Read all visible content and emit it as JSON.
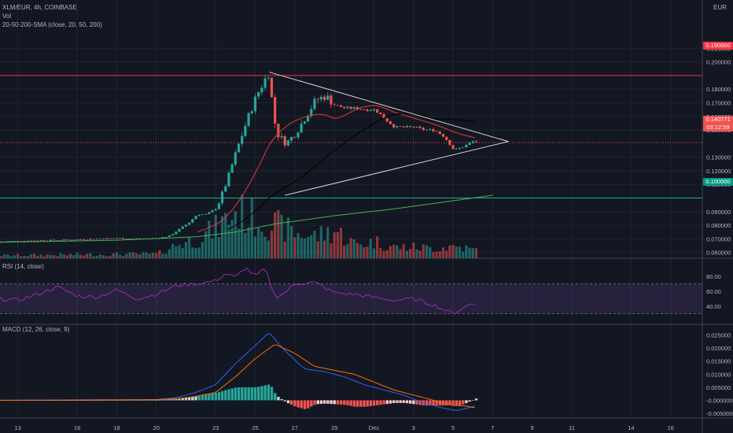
{
  "header": {
    "symbol": "XLM/EUR, 4h, COINBASE",
    "currency": "EUR",
    "vol_label": "Vol",
    "sma_label": "20-50-200-SMA (close, 20, 50, 200)"
  },
  "panes": {
    "rsi_label": "RSI (14, close)",
    "macd_label": "MACD (12, 26, close, 9)"
  },
  "price_tags": {
    "resistance": "0.190000",
    "last": "0.140771",
    "countdown": "03:12:59",
    "support": "0.100000"
  },
  "colors": {
    "bg": "#131722",
    "up": "#26a69a",
    "down": "#ef5350",
    "sma20": "#e53935",
    "sma50": "#000000",
    "sma200": "#4caf50",
    "resistance": "#f23645",
    "support": "#22ab94",
    "rsi": "#9c27b0",
    "macd": "#2962ff",
    "signal": "#ff6d00"
  },
  "chart_data": [
    {
      "type": "candlestick",
      "title": "XLM/EUR, 4h, COINBASE",
      "y_axis": {
        "min": 0.055,
        "max": 0.21,
        "ticks": [
          "0.210000",
          "0.200000",
          "0.180000",
          "0.170000",
          "0.160000",
          "0.150000",
          "0.130000",
          "0.120000",
          "0.110000",
          "0.090000",
          "0.080000",
          "0.070000",
          "0.060000"
        ]
      },
      "x_axis": {
        "ticks": [
          "13",
          "16",
          "18",
          "20",
          "23",
          "25",
          "27",
          "29",
          "Dec",
          "3",
          "5",
          "7",
          "9",
          "11",
          "14",
          "16"
        ],
        "tick_days": [
          13,
          16,
          18,
          20,
          23,
          25,
          27,
          29,
          31,
          33,
          35,
          37,
          39,
          41,
          44,
          46
        ],
        "day_range": [
          12.1,
          47.6
        ],
        "last_candle_day": 36.2
      },
      "anchors": [
        [
          12.1,
          0.068
        ],
        [
          13,
          0.0685
        ],
        [
          14,
          0.0688
        ],
        [
          15,
          0.069
        ],
        [
          16,
          0.0695
        ],
        [
          17,
          0.07
        ],
        [
          18,
          0.0705
        ],
        [
          19,
          0.07
        ],
        [
          20,
          0.0705
        ],
        [
          20.6,
          0.072
        ],
        [
          21,
          0.076
        ],
        [
          21.6,
          0.082
        ],
        [
          22,
          0.088
        ],
        [
          22.5,
          0.088
        ],
        [
          23,
          0.093
        ],
        [
          23.5,
          0.112
        ],
        [
          24,
          0.135
        ],
        [
          24.6,
          0.16
        ],
        [
          25,
          0.175
        ],
        [
          25.6,
          0.192
        ],
        [
          26,
          0.148
        ],
        [
          26.5,
          0.14
        ],
        [
          27,
          0.148
        ],
        [
          27.5,
          0.16
        ],
        [
          28,
          0.172
        ],
        [
          28.5,
          0.175
        ],
        [
          29,
          0.168
        ],
        [
          29.5,
          0.166
        ],
        [
          30,
          0.166
        ],
        [
          30.5,
          0.165
        ],
        [
          31,
          0.165
        ],
        [
          31.5,
          0.158
        ],
        [
          32,
          0.152
        ],
        [
          32.5,
          0.152
        ],
        [
          33,
          0.152
        ],
        [
          33.5,
          0.15
        ],
        [
          34,
          0.15
        ],
        [
          34.5,
          0.145
        ],
        [
          35,
          0.135
        ],
        [
          35.5,
          0.138
        ],
        [
          36,
          0.142
        ],
        [
          36.2,
          0.1408
        ]
      ],
      "series": [
        {
          "name": "SMA 20",
          "kind": "sma",
          "period": 20
        },
        {
          "name": "SMA 50",
          "kind": "sma",
          "period": 50
        },
        {
          "name": "SMA 200",
          "kind": "sma",
          "period": 200,
          "points": [
            [
              12.1,
              0.0675
            ],
            [
              18,
              0.069
            ],
            [
              22,
              0.0715
            ],
            [
              24,
              0.075
            ],
            [
              26,
              0.081
            ],
            [
              29,
              0.087
            ],
            [
              32,
              0.092
            ],
            [
              35,
              0.098
            ],
            [
              37,
              0.102
            ]
          ]
        }
      ],
      "horizontal_lines": [
        {
          "name": "resistance",
          "value": 0.19
        },
        {
          "name": "support",
          "value": 0.1
        }
      ],
      "triangle": {
        "upper": [
          [
            25.7,
            0.1925
          ],
          [
            37.8,
            0.1415
          ]
        ],
        "lower": [
          [
            26.5,
            0.102
          ],
          [
            37.8,
            0.1415
          ]
        ]
      },
      "last_price": 0.140771
    },
    {
      "type": "bar",
      "title": "Vol",
      "note": "volume histogram, unlabeled scale; heights relative",
      "relative_profile": [
        [
          12,
          0.05
        ],
        [
          20,
          0.08
        ],
        [
          21,
          0.25
        ],
        [
          22,
          0.35
        ],
        [
          23,
          0.55
        ],
        [
          24,
          0.85
        ],
        [
          25,
          0.7
        ],
        [
          26,
          0.6
        ],
        [
          27,
          0.45
        ],
        [
          28,
          0.4
        ],
        [
          29,
          0.5
        ],
        [
          30,
          0.25
        ],
        [
          31,
          0.3
        ],
        [
          32,
          0.2
        ],
        [
          33,
          0.2
        ],
        [
          34,
          0.18
        ],
        [
          35,
          0.22
        ],
        [
          36,
          0.15
        ]
      ]
    },
    {
      "type": "line",
      "title": "RSI (14, close)",
      "y_axis": {
        "min": 20,
        "max": 100,
        "ticks": [
          "80.00",
          "60.00",
          "40.00"
        ],
        "tick_values": [
          80,
          60,
          40
        ]
      },
      "bands": {
        "upper": 70,
        "lower": 30
      },
      "series": [
        {
          "name": "RSI",
          "points": [
            [
              12.1,
              50
            ],
            [
              13,
              48
            ],
            [
              14,
              56
            ],
            [
              15,
              66
            ],
            [
              16,
              54
            ],
            [
              17,
              52
            ],
            [
              18,
              62
            ],
            [
              19,
              50
            ],
            [
              20,
              56
            ],
            [
              21,
              68
            ],
            [
              22,
              70
            ],
            [
              23,
              74
            ],
            [
              23.5,
              84
            ],
            [
              24,
              78
            ],
            [
              24.5,
              92
            ],
            [
              25,
              80
            ],
            [
              25.5,
              90
            ],
            [
              26,
              52
            ],
            [
              26.5,
              58
            ],
            [
              27,
              70
            ],
            [
              28,
              72
            ],
            [
              29,
              58
            ],
            [
              30,
              56
            ],
            [
              31,
              52
            ],
            [
              32,
              48
            ],
            [
              33,
              50
            ],
            [
              34,
              42
            ],
            [
              35,
              30
            ],
            [
              35.5,
              38
            ],
            [
              36,
              44
            ],
            [
              36.2,
              42
            ]
          ]
        }
      ]
    },
    {
      "type": "line",
      "title": "MACD (12, 26, close, 9)",
      "y_axis": {
        "min": -0.0065,
        "max": 0.0285,
        "ticks": [
          "0.025000",
          "0.020000",
          "0.015000",
          "0.010000",
          "0.005000",
          "-0.000000",
          "-0.005000"
        ],
        "tick_values": [
          0.025,
          0.02,
          0.015,
          0.01,
          0.005,
          0,
          -0.005
        ]
      },
      "series": [
        {
          "name": "MACD",
          "points": [
            [
              12.1,
              0
            ],
            [
              20,
              0.0003
            ],
            [
              21,
              0.001
            ],
            [
              22,
              0.003
            ],
            [
              23,
              0.006
            ],
            [
              24,
              0.014
            ],
            [
              25,
              0.021
            ],
            [
              25.7,
              0.026
            ],
            [
              26.5,
              0.019
            ],
            [
              27.5,
              0.012
            ],
            [
              28.5,
              0.011
            ],
            [
              29.5,
              0.009
            ],
            [
              30.5,
              0.006
            ],
            [
              31.5,
              0.004
            ],
            [
              32.5,
              0.002
            ],
            [
              33.5,
              -0.001
            ],
            [
              34.5,
              -0.003
            ],
            [
              35.2,
              -0.004
            ],
            [
              36.2,
              -0.002
            ]
          ]
        },
        {
          "name": "Signal",
          "points": [
            [
              12.1,
              0
            ],
            [
              20,
              0.0002
            ],
            [
              21,
              0.0006
            ],
            [
              22,
              0.0015
            ],
            [
              23,
              0.003
            ],
            [
              24,
              0.009
            ],
            [
              25,
              0.016
            ],
            [
              26,
              0.0215
            ],
            [
              27,
              0.018
            ],
            [
              28,
              0.013
            ],
            [
              29,
              0.0115
            ],
            [
              30,
              0.01
            ],
            [
              31,
              0.007
            ],
            [
              32,
              0.004
            ],
            [
              33,
              0.002
            ],
            [
              34,
              0
            ],
            [
              35,
              -0.002
            ],
            [
              35.5,
              -0.002
            ],
            [
              36.2,
              -0.003
            ]
          ]
        }
      ],
      "histogram": "MACD minus Signal"
    }
  ]
}
